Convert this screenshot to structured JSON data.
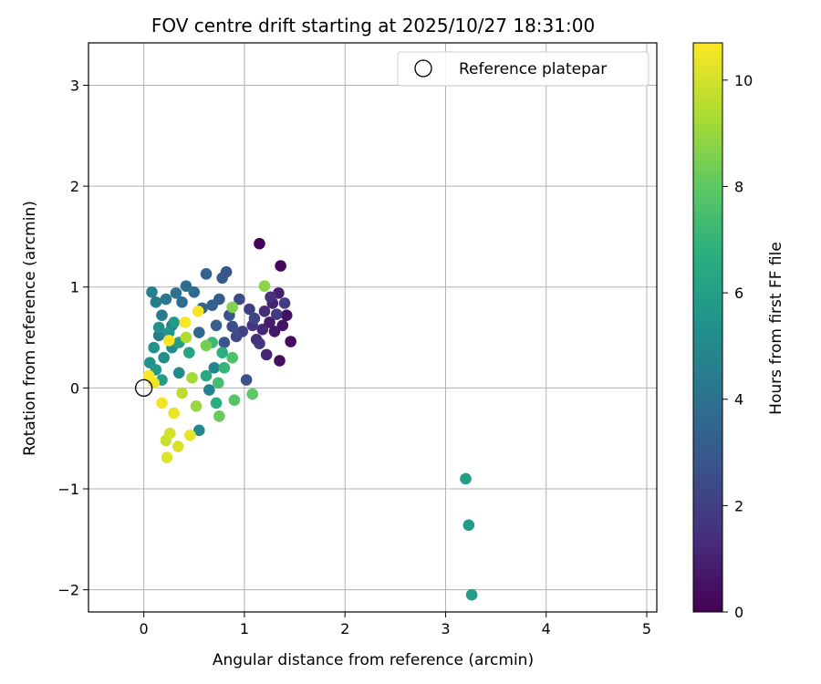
{
  "chart_data": {
    "type": "scatter",
    "title": "FOV centre drift starting at 2025/10/27 18:31:00",
    "xlabel": "Angular distance from reference (arcmin)",
    "ylabel": "Rotation from reference (arcmin)",
    "xlim": [
      -0.55,
      5.1
    ],
    "ylim": [
      -2.22,
      3.42
    ],
    "xticks": [
      0,
      1,
      2,
      3,
      4,
      5
    ],
    "yticks": [
      -2,
      -1,
      0,
      1,
      2,
      3
    ],
    "grid": true,
    "legend": {
      "position": "top-right",
      "entries": [
        "Reference platepar"
      ]
    },
    "reference_point": {
      "x": 0,
      "y": 0
    },
    "colorbar": {
      "label": "Hours from first FF file",
      "min": 0,
      "max": 10.7,
      "ticks": [
        0,
        2,
        4,
        6,
        8,
        10
      ],
      "colormap": "viridis"
    },
    "points": [
      [
        1.15,
        1.43,
        0.1
      ],
      [
        1.36,
        1.21,
        0.2
      ],
      [
        1.46,
        0.46,
        0.3
      ],
      [
        1.35,
        0.27,
        0.4
      ],
      [
        1.42,
        0.72,
        0.5
      ],
      [
        1.38,
        0.62,
        0.6
      ],
      [
        1.3,
        0.56,
        0.7
      ],
      [
        1.25,
        0.65,
        0.8
      ],
      [
        1.34,
        0.94,
        0.9
      ],
      [
        1.28,
        0.84,
        1.0
      ],
      [
        1.22,
        0.33,
        1.1
      ],
      [
        1.18,
        0.58,
        1.2
      ],
      [
        1.2,
        0.76,
        1.3
      ],
      [
        1.12,
        0.48,
        1.4
      ],
      [
        1.26,
        0.9,
        1.5
      ],
      [
        1.15,
        0.44,
        1.6
      ],
      [
        1.08,
        0.62,
        1.7
      ],
      [
        1.32,
        0.73,
        1.8
      ],
      [
        1.4,
        0.84,
        1.9
      ],
      [
        1.05,
        0.78,
        2.0
      ],
      [
        0.98,
        0.56,
        2.1
      ],
      [
        1.1,
        0.69,
        2.2
      ],
      [
        0.92,
        0.51,
        2.3
      ],
      [
        0.95,
        0.88,
        2.4
      ],
      [
        0.88,
        0.61,
        2.5
      ],
      [
        1.02,
        0.08,
        2.6
      ],
      [
        0.85,
        0.72,
        2.7
      ],
      [
        0.8,
        0.45,
        2.8
      ],
      [
        0.82,
        1.15,
        2.9
      ],
      [
        0.78,
        1.09,
        3.0
      ],
      [
        0.75,
        0.88,
        3.1
      ],
      [
        0.72,
        0.62,
        3.2
      ],
      [
        0.68,
        0.82,
        3.3
      ],
      [
        0.62,
        1.13,
        3.4
      ],
      [
        0.58,
        0.79,
        3.5
      ],
      [
        0.55,
        0.55,
        3.6
      ],
      [
        0.5,
        0.95,
        3.7
      ],
      [
        0.42,
        1.01,
        3.8
      ],
      [
        0.38,
        0.85,
        3.9
      ],
      [
        0.32,
        0.94,
        4.0
      ],
      [
        0.28,
        0.62,
        4.1
      ],
      [
        0.22,
        0.88,
        4.2
      ],
      [
        0.18,
        0.72,
        4.3
      ],
      [
        0.15,
        0.52,
        4.4
      ],
      [
        0.12,
        0.85,
        4.5
      ],
      [
        0.08,
        0.95,
        4.6
      ],
      [
        0.65,
        -0.02,
        4.7
      ],
      [
        0.7,
        0.2,
        4.8
      ],
      [
        0.55,
        -0.42,
        4.9
      ],
      [
        0.35,
        0.15,
        5.0
      ],
      [
        0.28,
        0.4,
        5.1
      ],
      [
        0.2,
        0.3,
        5.2
      ],
      [
        0.15,
        0.6,
        5.3
      ],
      [
        0.1,
        0.4,
        5.4
      ],
      [
        0.06,
        0.25,
        5.5
      ],
      [
        0.25,
        0.55,
        5.6
      ],
      [
        0.12,
        0.18,
        5.7
      ],
      [
        0.3,
        0.65,
        5.8
      ],
      [
        0.18,
        0.08,
        5.9
      ],
      [
        0.35,
        0.45,
        6.0
      ],
      [
        3.2,
        -0.9,
        5.9
      ],
      [
        3.23,
        -1.36,
        5.9
      ],
      [
        3.26,
        -2.05,
        5.9
      ],
      [
        0.45,
        0.35,
        6.2
      ],
      [
        0.62,
        0.12,
        6.4
      ],
      [
        0.72,
        -0.15,
        6.6
      ],
      [
        0.78,
        0.35,
        6.8
      ],
      [
        0.8,
        0.2,
        7.0
      ],
      [
        0.68,
        0.45,
        7.2
      ],
      [
        0.74,
        0.05,
        7.4
      ],
      [
        0.88,
        0.3,
        7.6
      ],
      [
        0.9,
        -0.12,
        7.8
      ],
      [
        1.08,
        -0.06,
        8.0
      ],
      [
        0.75,
        -0.28,
        8.2
      ],
      [
        0.62,
        0.42,
        8.4
      ],
      [
        0.88,
        0.8,
        8.6
      ],
      [
        1.2,
        1.01,
        8.8
      ],
      [
        0.52,
        -0.18,
        9.0
      ],
      [
        0.48,
        0.1,
        9.2
      ],
      [
        0.42,
        0.5,
        9.4
      ],
      [
        0.38,
        -0.05,
        9.6
      ],
      [
        0.22,
        -0.52,
        9.8
      ],
      [
        0.26,
        -0.45,
        10.0
      ],
      [
        0.34,
        -0.58,
        10.1
      ],
      [
        0.23,
        -0.69,
        10.2
      ],
      [
        0.46,
        -0.47,
        10.3
      ],
      [
        0.3,
        -0.25,
        10.4
      ],
      [
        0.18,
        -0.15,
        10.5
      ],
      [
        0.1,
        0.05,
        10.5
      ],
      [
        0.05,
        0.12,
        10.6
      ],
      [
        0.25,
        0.47,
        10.6
      ],
      [
        0.54,
        0.76,
        10.6
      ],
      [
        0.41,
        0.65,
        10.6
      ]
    ]
  }
}
